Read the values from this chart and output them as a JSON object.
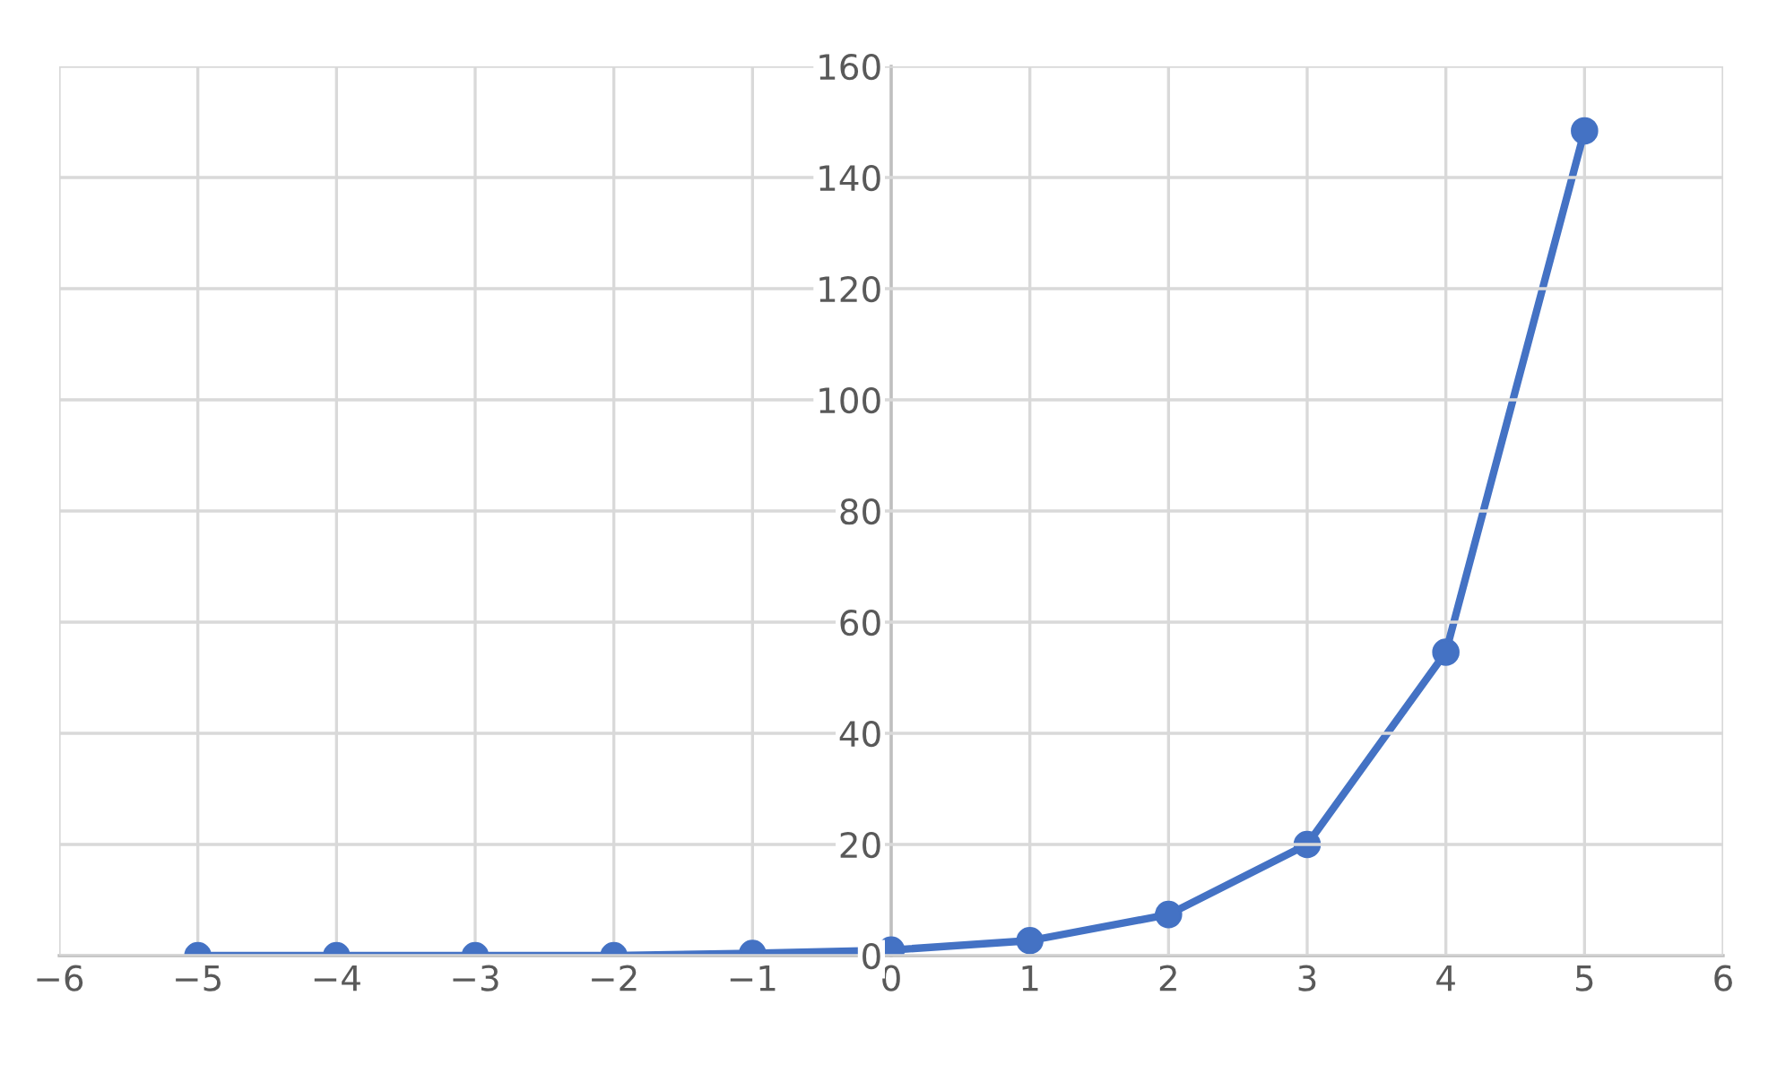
{
  "chart_data": {
    "type": "line",
    "x": [
      -5,
      -4,
      -3,
      -2,
      -1,
      0,
      1,
      2,
      3,
      4,
      5
    ],
    "series": [
      {
        "color": "#4472c4",
        "values": [
          0,
          0,
          0,
          0,
          0.4,
          1,
          2.7,
          7.4,
          20,
          54.6,
          148.4
        ]
      }
    ],
    "xlim": [
      -6,
      6
    ],
    "xticks": [
      -6,
      -5,
      -4,
      -3,
      -2,
      -1,
      0,
      1,
      2,
      3,
      4,
      5,
      6
    ],
    "ylim": [
      0,
      160
    ],
    "yticks": [
      0,
      20,
      40,
      60,
      80,
      100,
      120,
      140,
      160
    ],
    "grid": true,
    "marker": "circle",
    "line_style": "solid",
    "legend": false
  }
}
